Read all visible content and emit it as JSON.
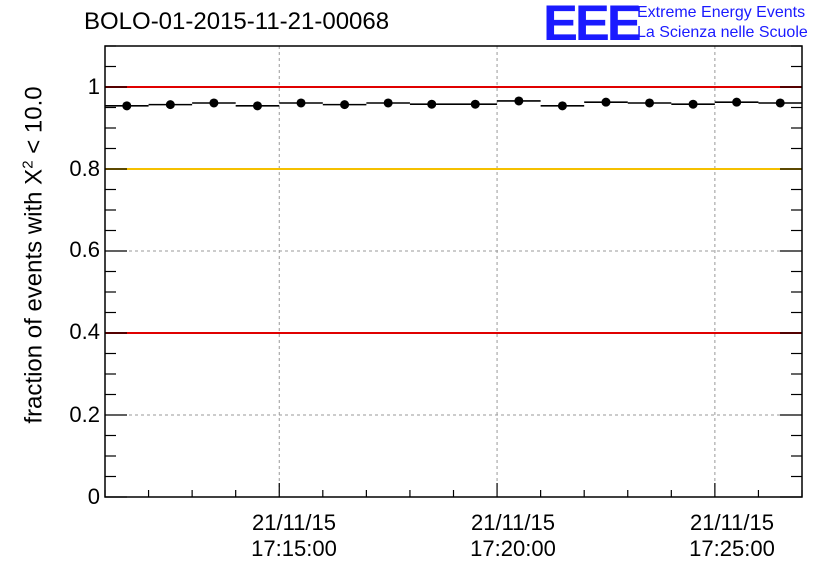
{
  "header": {
    "run_title": "BOLO-01-2015-11-21-00068"
  },
  "logo": {
    "letters": "EEE",
    "line1": "Extreme Energy Events",
    "line2": "La Scienza nelle Scuole",
    "color": "#1a1aff"
  },
  "chart_data": {
    "type": "scatter",
    "title": "BOLO-01-2015-11-21-00068",
    "ylabel_prefix": "fraction of events with ",
    "ylabel_symbol": "X",
    "ylabel_sup": "2",
    "ylabel_suffix": " < 10.0",
    "xlim": [
      "17:11:00",
      "17:27:00"
    ],
    "ylim": [
      0,
      1.1
    ],
    "grid": true,
    "ytick_labels": [
      "0",
      "0.2",
      "0.4",
      "0.6",
      "0.8",
      "1"
    ],
    "ytick_values": [
      0,
      0.2,
      0.4,
      0.6,
      0.8,
      1.0
    ],
    "xtick_labels": [
      {
        "date": "21/11/15",
        "time": "17:15:00"
      },
      {
        "date": "21/11/15",
        "time": "17:20:00"
      },
      {
        "date": "21/11/15",
        "time": "17:25:00"
      }
    ],
    "xtick_times": [
      "17:15:00",
      "17:20:00",
      "17:25:00"
    ],
    "reference_lines": [
      {
        "y": 1.0,
        "color": "#e00000"
      },
      {
        "y": 0.8,
        "color": "#f5c000"
      },
      {
        "y": 0.4,
        "color": "#e00000"
      }
    ],
    "points": [
      {
        "x": "17:11:30",
        "y": 0.954
      },
      {
        "x": "17:12:30",
        "y": 0.957
      },
      {
        "x": "17:13:30",
        "y": 0.961
      },
      {
        "x": "17:14:30",
        "y": 0.954
      },
      {
        "x": "17:15:30",
        "y": 0.961
      },
      {
        "x": "17:16:30",
        "y": 0.957
      },
      {
        "x": "17:17:30",
        "y": 0.961
      },
      {
        "x": "17:18:30",
        "y": 0.958
      },
      {
        "x": "17:19:30",
        "y": 0.958
      },
      {
        "x": "17:20:30",
        "y": 0.966
      },
      {
        "x": "17:21:30",
        "y": 0.954
      },
      {
        "x": "17:22:30",
        "y": 0.963
      },
      {
        "x": "17:23:30",
        "y": 0.961
      },
      {
        "x": "17:24:30",
        "y": 0.958
      },
      {
        "x": "17:25:30",
        "y": 0.963
      },
      {
        "x": "17:26:30",
        "y": 0.961
      }
    ]
  }
}
